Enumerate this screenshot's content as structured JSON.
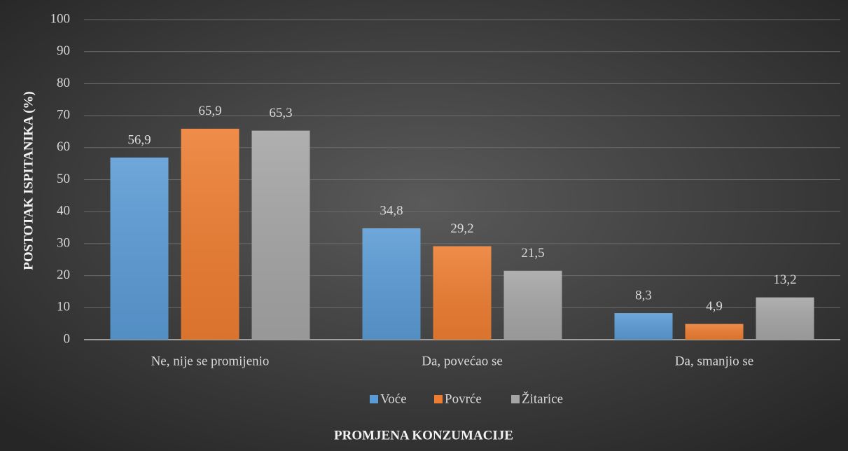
{
  "chart_data": {
    "type": "bar",
    "x_label": "PROMJENA KONZUMACIJE",
    "y_label": "POSTOTAK ISPITANIKA (%)",
    "categories": [
      "Ne, nije se promijenio",
      "Da, povećao se",
      "Da, smanjio se"
    ],
    "series": [
      {
        "name": "Voće",
        "color": "#5b9bd5",
        "values": [
          56.9,
          34.8,
          8.3
        ],
        "value_labels": [
          "56,9",
          "34,8",
          "8,3"
        ]
      },
      {
        "name": "Povrće",
        "color": "#ed7d31",
        "values": [
          65.9,
          29.2,
          4.9
        ],
        "value_labels": [
          "65,9",
          "29,2",
          "4,9"
        ]
      },
      {
        "name": "Žitarice",
        "color": "#a5a5a5",
        "values": [
          65.3,
          21.5,
          13.2
        ],
        "value_labels": [
          "65,3",
          "21,5",
          "13,2"
        ]
      }
    ],
    "ylim": [
      0,
      100
    ],
    "yticks": [
      0,
      10,
      20,
      30,
      40,
      50,
      60,
      70,
      80,
      90,
      100
    ],
    "grid": true,
    "legend": "bottom"
  }
}
